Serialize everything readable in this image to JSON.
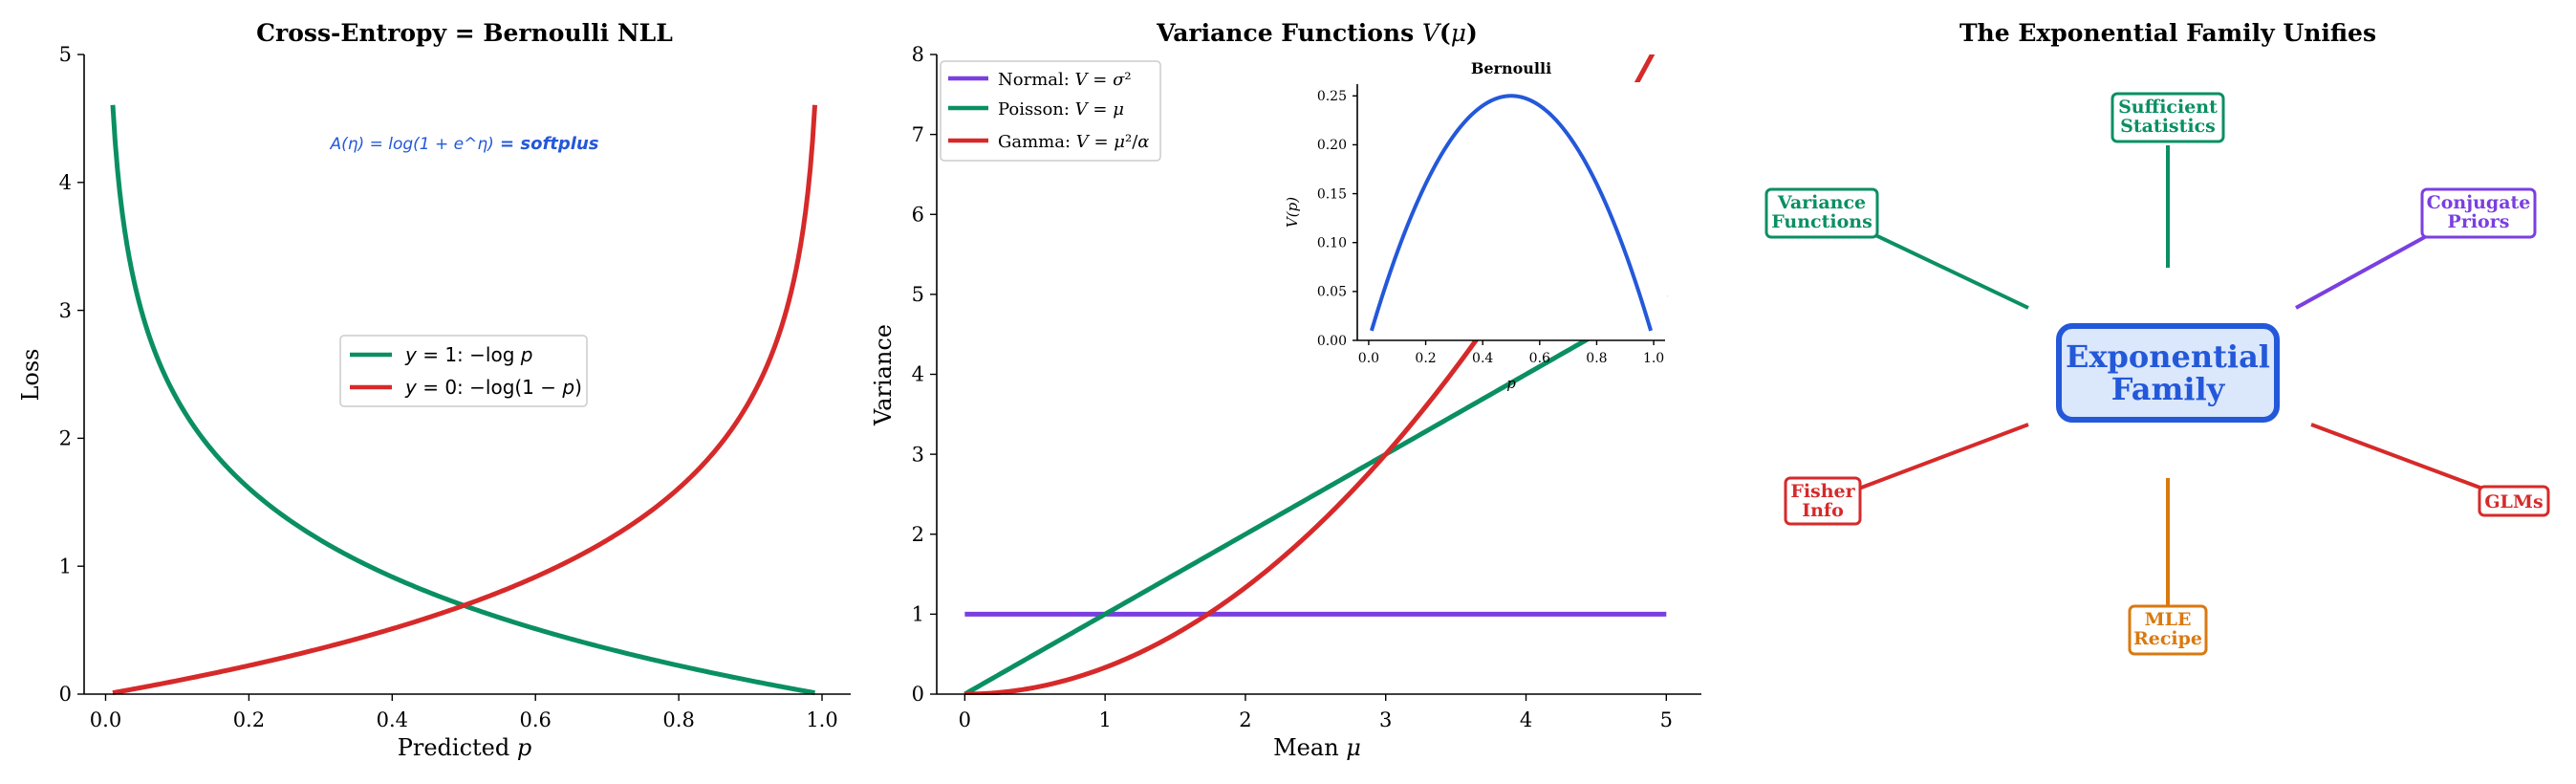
{
  "colors": {
    "green": "#0a8f63",
    "red": "#d62a2a",
    "purple": "#7a3fe0",
    "blue": "#2358d9",
    "orange": "#d9790f",
    "center_fill": "#dbe7fb"
  },
  "chart_data": [
    {
      "type": "line",
      "title": "Cross-Entropy = Bernoulli NLL",
      "xlabel": "Predicted p",
      "ylabel": "Loss",
      "xlim": [
        -0.03,
        1.04
      ],
      "ylim": [
        0,
        5
      ],
      "xticks": [
        "0.0",
        "0.2",
        "0.4",
        "0.6",
        "0.8",
        "1.0"
      ],
      "yticks": [
        "0",
        "1",
        "2",
        "3",
        "4",
        "5"
      ],
      "x_domain": [
        0.01,
        0.99
      ],
      "series": [
        {
          "name": "y = 1: −log p",
          "function": "neglog_p",
          "color": "green"
        },
        {
          "name": "y = 0: −log(1 − p)",
          "function": "neglog_1mp",
          "color": "red"
        }
      ],
      "legend_position": "center",
      "annotation": {
        "formula": "A(η) = log(1 + e^η)",
        "text": " = softplus"
      }
    },
    {
      "type": "line",
      "title": "Variance Functions V(μ)",
      "xlabel": "Mean μ",
      "ylabel": "Variance",
      "xlim": [
        -0.2,
        5.25
      ],
      "ylim": [
        0,
        8
      ],
      "xticks": [
        "0",
        "1",
        "2",
        "3",
        "4",
        "5"
      ],
      "yticks": [
        "0",
        "1",
        "2",
        "3",
        "4",
        "5",
        "6",
        "7",
        "8"
      ],
      "x_domain": [
        0,
        5
      ],
      "series": [
        {
          "name": "Normal: V = σ²",
          "function": "constant_1",
          "color": "purple"
        },
        {
          "name": "Poisson: V = μ",
          "function": "identity",
          "color": "green"
        },
        {
          "name": "Gamma: V = μ²/α",
          "function": "mu_squared_over_3",
          "color": "red"
        }
      ],
      "legend_position": "top-left",
      "inset": {
        "title": "Bernoulli",
        "xlabel": "p",
        "ylabel": "V(p)",
        "xlim": [
          -0.04,
          1.04
        ],
        "ylim": [
          0,
          0.262
        ],
        "xticks": [
          "0.0",
          "0.2",
          "0.4",
          "0.6",
          "0.8",
          "1.0"
        ],
        "yticks": [
          "0.00",
          "0.05",
          "0.10",
          "0.15",
          "0.20",
          "0.25"
        ],
        "x_domain": [
          0.01,
          0.99
        ],
        "function": "p_times_1mp",
        "color": "blue"
      }
    }
  ],
  "diagram": {
    "title": "The Exponential Family Unifies",
    "center": {
      "line1": "Exponential",
      "line2": "Family"
    },
    "nodes": [
      {
        "line1": "Sufficient",
        "line2": "Statistics",
        "color": "green"
      },
      {
        "line1": "Variance",
        "line2": "Functions",
        "color": "green"
      },
      {
        "line1": "Conjugate",
        "line2": "Priors",
        "color": "purple"
      },
      {
        "line1": "Fisher",
        "line2": "Info",
        "color": "red"
      },
      {
        "line1": "GLMs",
        "line2": "",
        "color": "red"
      },
      {
        "line1": "MLE",
        "line2": "Recipe",
        "color": "orange"
      }
    ]
  }
}
